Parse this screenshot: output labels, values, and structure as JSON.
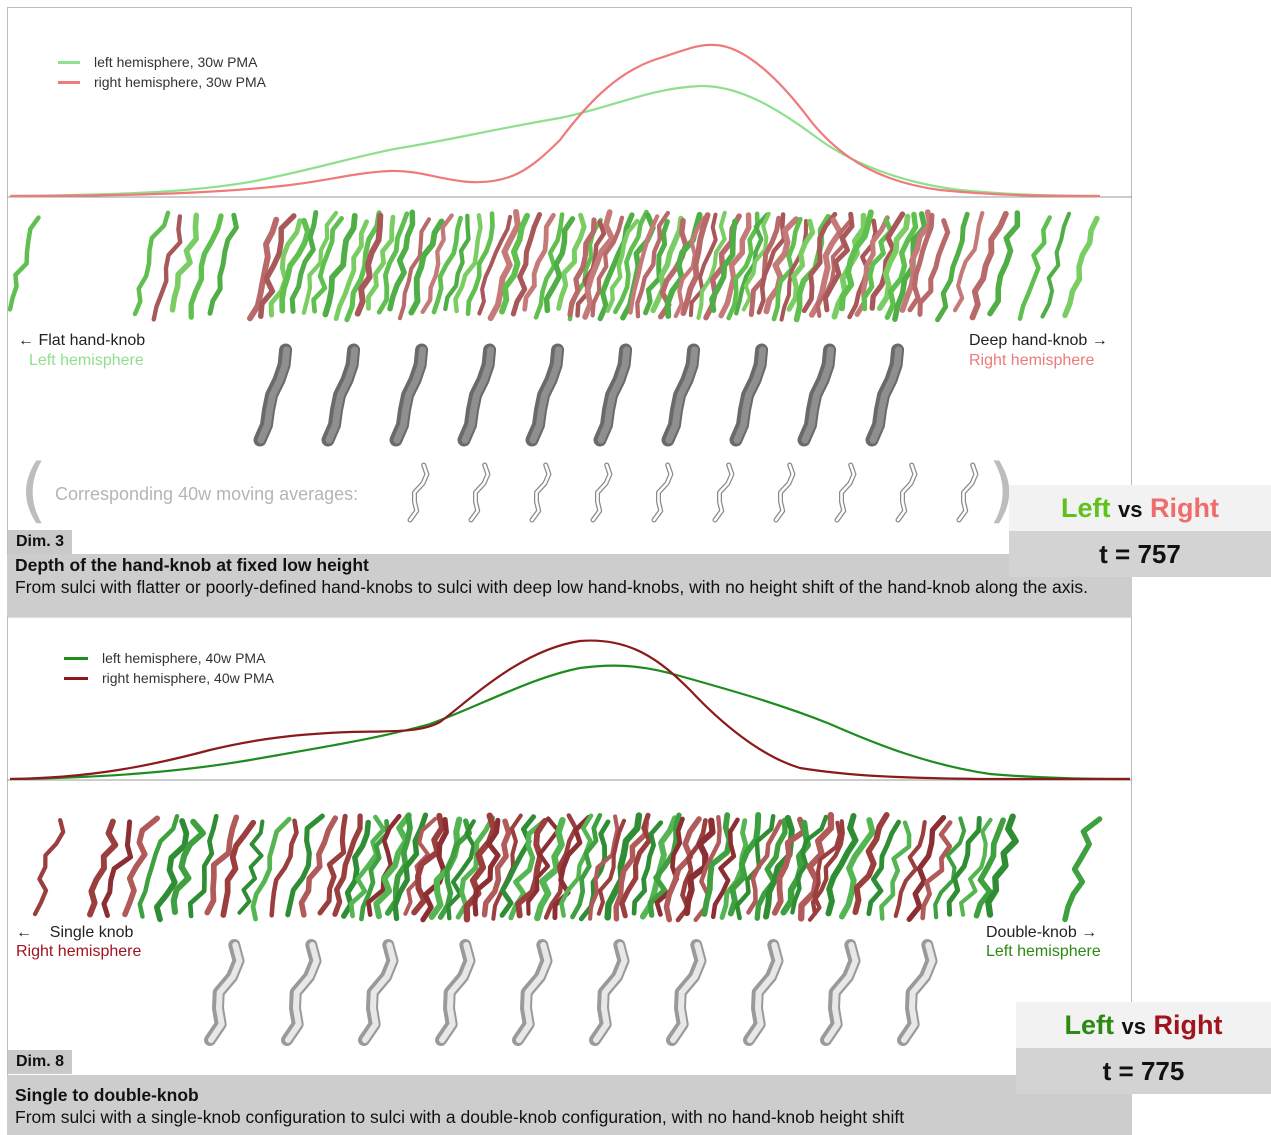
{
  "dim3": {
    "legend": [
      {
        "label": "left hemisphere, 30w PMA",
        "color": "#8ee08e"
      },
      {
        "label": "right hemisphere, 30w PMA",
        "color": "#ef7a7a"
      }
    ],
    "left_end_label": "← Flat hand-knob",
    "left_end_sub": "Left hemisphere",
    "right_end_label": "Deep hand-knob →",
    "right_end_sub": "Right hemisphere",
    "avg_label": "Corresponding 40w moving averages:",
    "dim_tag": "Dim. 3",
    "title": "Depth of the hand-knob at fixed low height",
    "description": "From sulci with flatter or poorly-defined hand-knobs to sulci with deep low hand-knobs, with no height shift of the hand-knob along the axis.",
    "stat_left": "Left",
    "stat_vs": "vs",
    "stat_right": "Right",
    "stat_value": "t = 757",
    "colors": {
      "left": "#5ec21e",
      "right": "#f06c6c"
    }
  },
  "dim8": {
    "legend": [
      {
        "label": "left hemisphere, 40w PMA",
        "color": "#1e8c1e"
      },
      {
        "label": "right hemisphere, 40w PMA",
        "color": "#8b1a1a"
      }
    ],
    "left_end_label": "←    Single knob",
    "left_end_sub": "Right hemisphere",
    "right_end_label": "Double-knob →",
    "right_end_sub": "Left hemisphere",
    "dim_tag": "Dim. 8",
    "title": "Single to double-knob",
    "description": "From sulci with a single-knob configuration to sulci with a double-knob configuration, with no hand-knob height shift",
    "stat_left": "Left",
    "stat_vs": "vs",
    "stat_right": "Right",
    "stat_value": "t = 775",
    "colors": {
      "left": "#2c8a12",
      "right": "#a0141e"
    }
  }
}
